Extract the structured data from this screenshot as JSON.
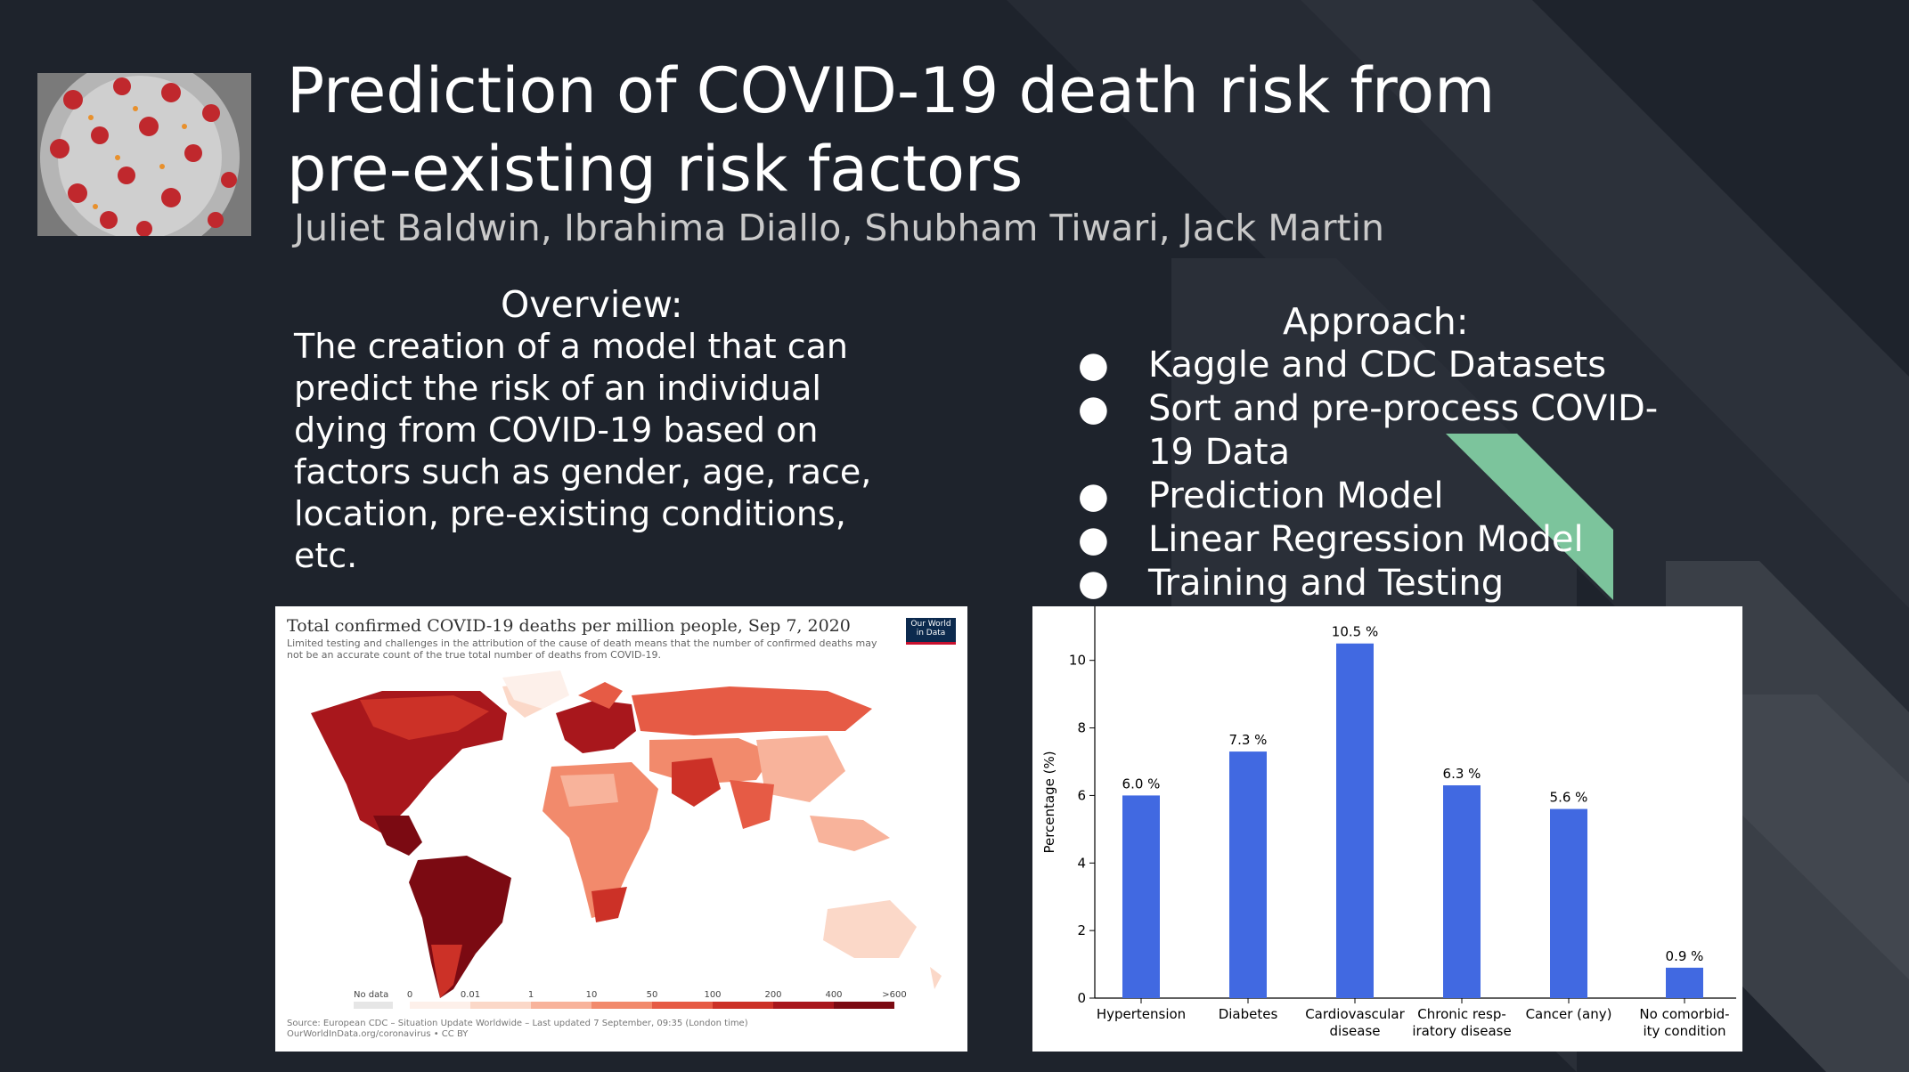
{
  "slide": {
    "title_line1": "Prediction of COVID-19 death risk from",
    "title_line2": "pre-existing risk factors",
    "authors": "Juliet Baldwin, Ibrahima Diallo, Shubham Tiwari, Jack Martin",
    "colors": {
      "background": "#1e232c",
      "accent": "#7cc49c",
      "bar": "#4169e1"
    }
  },
  "overview": {
    "heading": "Overview:",
    "lines": [
      "The creation of a model that can",
      "predict the risk of an individual",
      "dying from COVID-19 based on",
      "factors such as gender, age, race,",
      "location, pre-existing conditions,",
      "etc."
    ]
  },
  "approach": {
    "heading": "Approach:",
    "bullet": "●",
    "items": [
      "Kaggle and CDC Datasets",
      "Sort and pre-process COVID-19 Data",
      "Prediction Model",
      "Linear Regression Model",
      "Training and Testing"
    ]
  },
  "map": {
    "title": "Total confirmed COVID-19 deaths per million people, Sep 7, 2020",
    "subtitle": "Limited testing and challenges in the attribution of the cause of death means that the number of confirmed deaths may not be an accurate count of the true total number of deaths from COVID-19.",
    "logo_line1": "Our World",
    "logo_line2": "in Data",
    "legend": {
      "nodata": "No data",
      "ticks": [
        "0",
        "0.01",
        "1",
        "10",
        "50",
        "100",
        "200",
        "400",
        ">600"
      ],
      "colors": [
        "#fdf0ea",
        "#fbd8c8",
        "#f8b39b",
        "#f28a6c",
        "#e65b45",
        "#cc3127",
        "#a8171c",
        "#7b0a12"
      ]
    },
    "source_line1": "Source: European CDC – Situation Update Worldwide – Last updated 7 September, 09:35 (London time)",
    "source_line2": "OurWorldInData.org/coronavirus • CC BY"
  },
  "chart_data": {
    "type": "bar",
    "categories": [
      [
        "Hypertension"
      ],
      [
        "Diabetes"
      ],
      [
        "Cardiovascular",
        "disease"
      ],
      [
        "Chronic resp-",
        "iratory disease"
      ],
      [
        "Cancer (any)"
      ],
      [
        "No comorbid-",
        "ity condition"
      ]
    ],
    "values": [
      6.0,
      7.3,
      10.5,
      6.3,
      5.6,
      0.9
    ],
    "value_labels": [
      "6.0 %",
      "7.3 %",
      "10.5 %",
      "6.3 %",
      "5.6 %",
      "0.9 %"
    ],
    "ylabel": "Percentage (%)",
    "yticks": [
      0,
      2,
      4,
      6,
      8,
      10
    ],
    "ylim": [
      0,
      11.6
    ],
    "color": "#4169e1"
  }
}
